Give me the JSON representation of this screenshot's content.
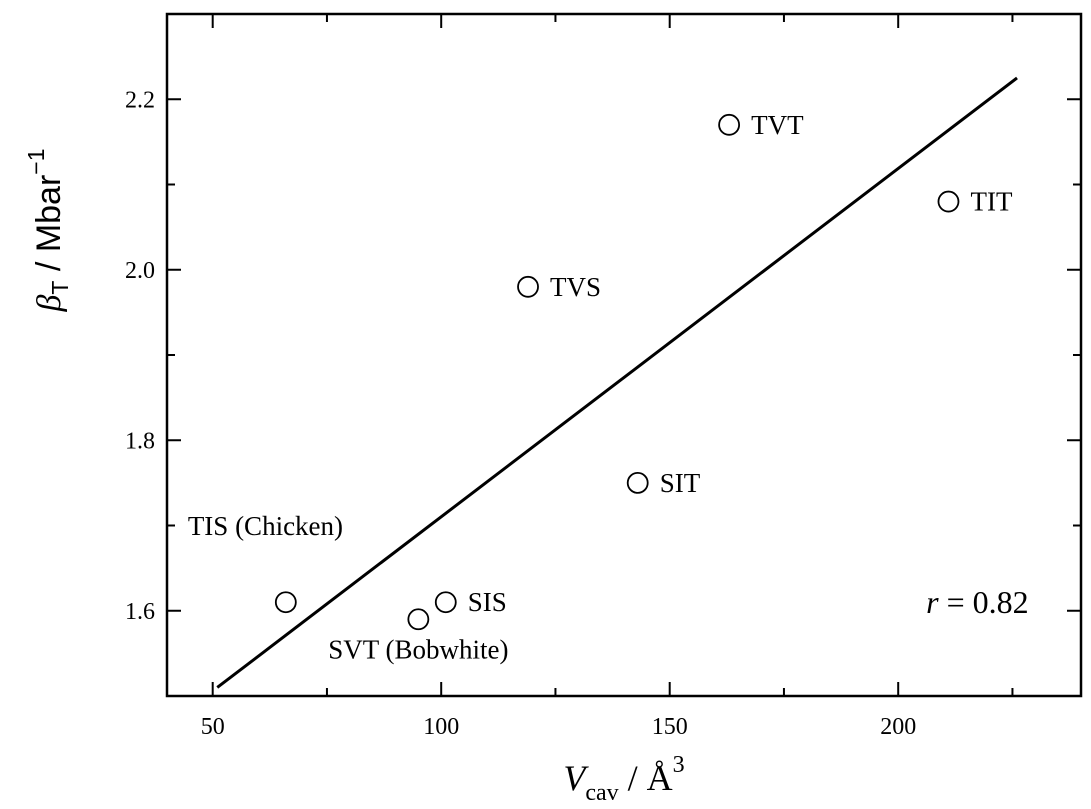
{
  "chart_data": {
    "type": "scatter",
    "title": "",
    "xlabel": {
      "main": "V",
      "sub": "cav",
      "rest": " / Å",
      "sup": "3"
    },
    "ylabel": {
      "main": "β",
      "sub": "T",
      "rest": " / Mbar",
      "sup": "−1"
    },
    "xlim": [
      40,
      240
    ],
    "ylim": [
      1.5,
      2.3
    ],
    "x_ticks": [
      50,
      100,
      150,
      200
    ],
    "x_tick_labels": [
      "50",
      "100",
      "150",
      "200"
    ],
    "y_ticks": [
      1.6,
      1.8,
      2.0,
      2.2
    ],
    "y_tick_labels": [
      "1.6",
      "1.8",
      "2.0",
      "2.2"
    ],
    "points": [
      {
        "label": "TIS (Chicken)",
        "x": 66,
        "y": 1.61,
        "label_pos": "above-left"
      },
      {
        "label": "SVT (Bobwhite)",
        "x": 95,
        "y": 1.59,
        "label_pos": "below"
      },
      {
        "label": "SIS",
        "x": 101,
        "y": 1.61,
        "label_pos": "right"
      },
      {
        "label": "TVS",
        "x": 119,
        "y": 1.98,
        "label_pos": "right"
      },
      {
        "label": "SIT",
        "x": 143,
        "y": 1.75,
        "label_pos": "right"
      },
      {
        "label": "TVT",
        "x": 163,
        "y": 2.17,
        "label_pos": "right"
      },
      {
        "label": "TIT",
        "x": 211,
        "y": 2.08,
        "label_pos": "right"
      }
    ],
    "fit_line": {
      "x": [
        51,
        226
      ],
      "y": [
        1.51,
        2.225
      ]
    },
    "annotation": {
      "var": "r",
      "text": " = 0.82",
      "x": 214,
      "y": 1.61
    },
    "grid": false,
    "legend": "none"
  }
}
